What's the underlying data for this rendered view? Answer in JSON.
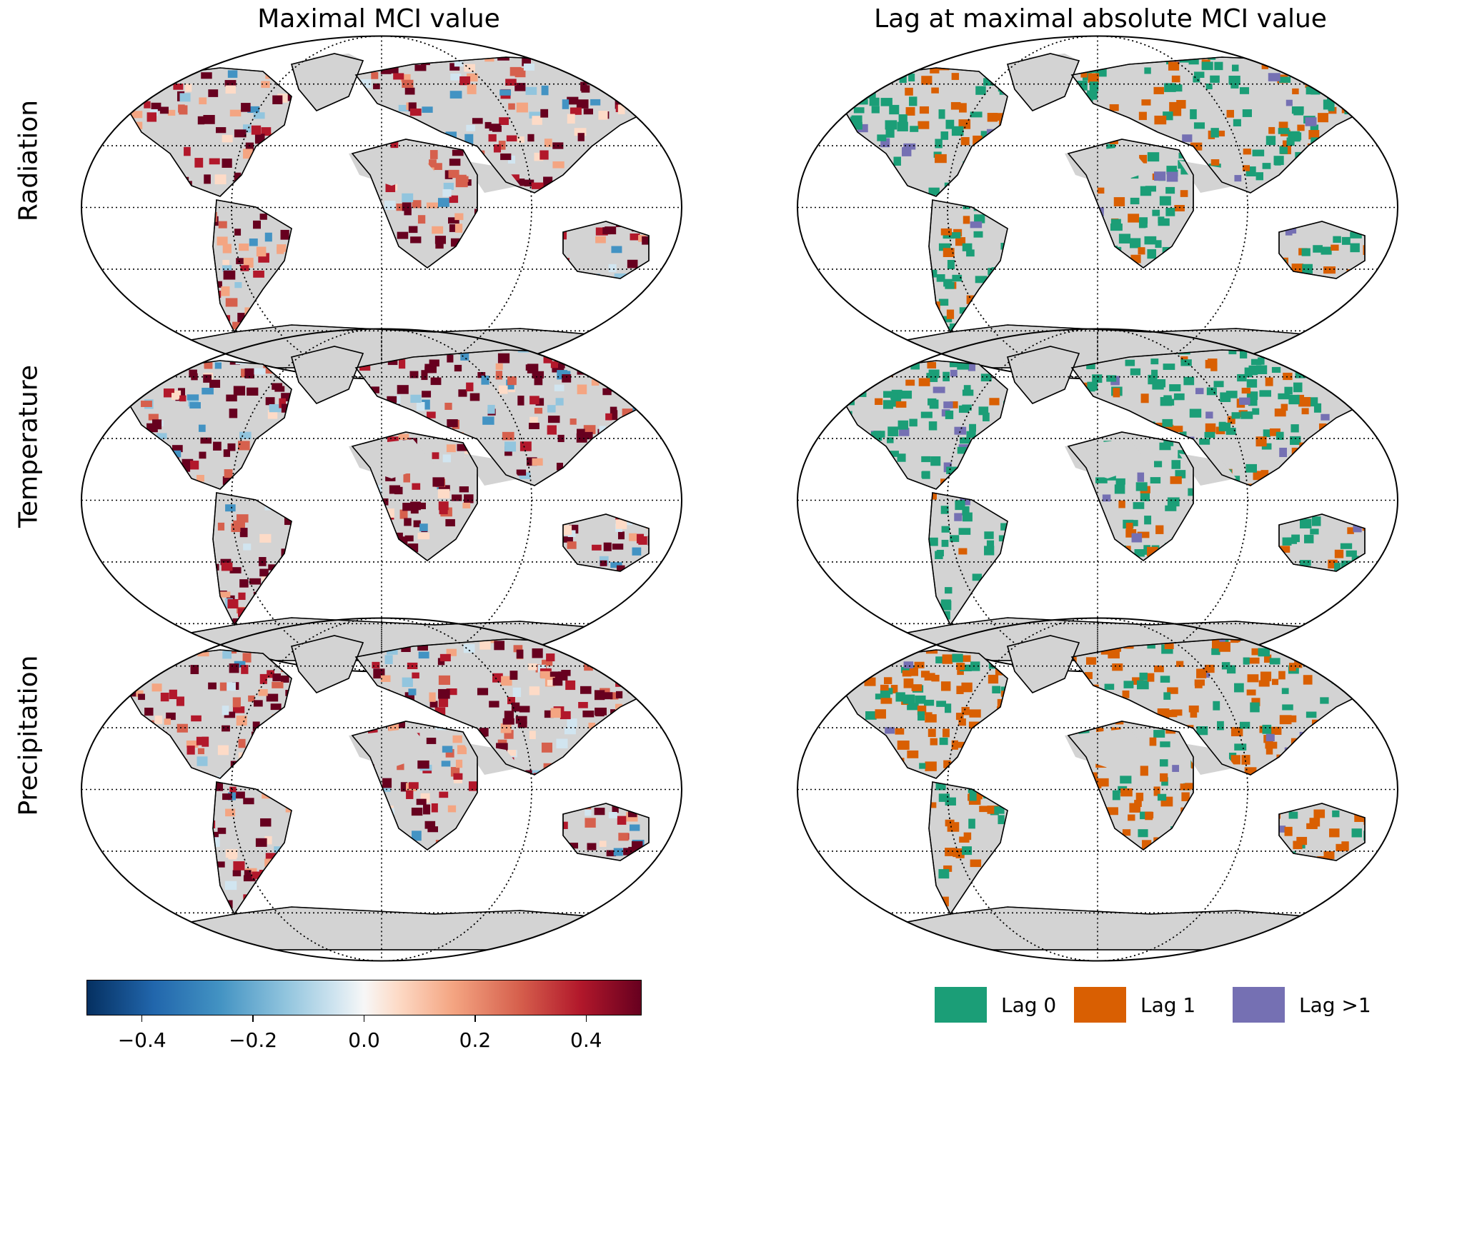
{
  "columns": {
    "left_title": "Maximal MCI value",
    "right_title": "Lag at maximal absolute MCI value"
  },
  "rows": [
    {
      "label": "Radiation"
    },
    {
      "label": "Temperature"
    },
    {
      "label": "Precipitation"
    }
  ],
  "colorbar": {
    "colormap": "RdBu_r",
    "range": [
      -0.5,
      0.5
    ],
    "ticks": [
      "−0.4",
      "−0.2",
      "0.0",
      "0.2",
      "0.4"
    ],
    "tick_values": [
      -0.4,
      -0.2,
      0.0,
      0.2,
      0.4
    ]
  },
  "legend": {
    "items": [
      {
        "label": "Lag 0",
        "color": "#1b9e77"
      },
      {
        "label": "Lag 1",
        "color": "#d95f02"
      },
      {
        "label": "Lag >1",
        "color": "#7570b3"
      }
    ]
  },
  "colors": {
    "land_no_data": "#d3d3d3",
    "lag0": "#1b9e77",
    "lag1": "#d95f02",
    "lag_gt1": "#7570b3"
  }
}
